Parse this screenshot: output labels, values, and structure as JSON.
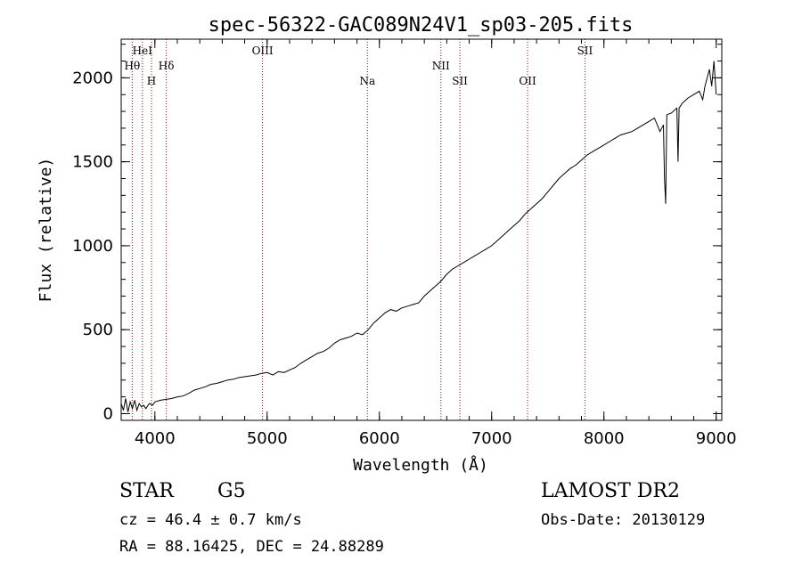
{
  "chart_data": {
    "type": "line",
    "title": "spec-56322-GAC089N24V1_sp03-205.fits",
    "xlabel": "Wavelength (Å)",
    "ylabel": "Flux (relative)",
    "xlim": [
      3700,
      9050
    ],
    "ylim": [
      -40,
      2230
    ],
    "x_ticks": [
      4000,
      5000,
      6000,
      7000,
      8000,
      9000
    ],
    "y_ticks": [
      0,
      500,
      1000,
      1500,
      2000
    ],
    "series": [
      {
        "values_mode": "wavelength-flux pairs",
        "points": [
          [
            3700,
            60
          ],
          [
            3720,
            20
          ],
          [
            3740,
            90
          ],
          [
            3760,
            10
          ],
          [
            3780,
            70
          ],
          [
            3800,
            30
          ],
          [
            3820,
            80
          ],
          [
            3840,
            20
          ],
          [
            3860,
            60
          ],
          [
            3880,
            40
          ],
          [
            3900,
            50
          ],
          [
            3920,
            30
          ],
          [
            3950,
            60
          ],
          [
            3980,
            50
          ],
          [
            4000,
            70
          ],
          [
            4050,
            80
          ],
          [
            4100,
            85
          ],
          [
            4150,
            90
          ],
          [
            4200,
            100
          ],
          [
            4250,
            105
          ],
          [
            4300,
            120
          ],
          [
            4350,
            140
          ],
          [
            4400,
            150
          ],
          [
            4450,
            160
          ],
          [
            4500,
            175
          ],
          [
            4550,
            180
          ],
          [
            4600,
            190
          ],
          [
            4650,
            200
          ],
          [
            4700,
            205
          ],
          [
            4750,
            215
          ],
          [
            4800,
            220
          ],
          [
            4850,
            225
          ],
          [
            4900,
            230
          ],
          [
            4950,
            240
          ],
          [
            5000,
            245
          ],
          [
            5050,
            230
          ],
          [
            5100,
            250
          ],
          [
            5150,
            245
          ],
          [
            5200,
            260
          ],
          [
            5250,
            275
          ],
          [
            5300,
            300
          ],
          [
            5350,
            320
          ],
          [
            5400,
            340
          ],
          [
            5450,
            360
          ],
          [
            5500,
            370
          ],
          [
            5550,
            390
          ],
          [
            5600,
            420
          ],
          [
            5650,
            440
          ],
          [
            5700,
            450
          ],
          [
            5750,
            460
          ],
          [
            5800,
            480
          ],
          [
            5850,
            470
          ],
          [
            5900,
            500
          ],
          [
            5950,
            540
          ],
          [
            6000,
            570
          ],
          [
            6050,
            600
          ],
          [
            6100,
            620
          ],
          [
            6150,
            610
          ],
          [
            6200,
            630
          ],
          [
            6250,
            640
          ],
          [
            6300,
            650
          ],
          [
            6350,
            660
          ],
          [
            6400,
            700
          ],
          [
            6450,
            730
          ],
          [
            6500,
            760
          ],
          [
            6550,
            790
          ],
          [
            6600,
            830
          ],
          [
            6650,
            860
          ],
          [
            6700,
            880
          ],
          [
            6750,
            900
          ],
          [
            6800,
            920
          ],
          [
            6850,
            940
          ],
          [
            6900,
            960
          ],
          [
            6950,
            980
          ],
          [
            7000,
            1000
          ],
          [
            7050,
            1030
          ],
          [
            7100,
            1060
          ],
          [
            7150,
            1090
          ],
          [
            7200,
            1120
          ],
          [
            7250,
            1150
          ],
          [
            7300,
            1190
          ],
          [
            7350,
            1220
          ],
          [
            7400,
            1250
          ],
          [
            7450,
            1280
          ],
          [
            7500,
            1320
          ],
          [
            7550,
            1360
          ],
          [
            7600,
            1400
          ],
          [
            7650,
            1430
          ],
          [
            7700,
            1460
          ],
          [
            7750,
            1480
          ],
          [
            7800,
            1510
          ],
          [
            7850,
            1540
          ],
          [
            7900,
            1560
          ],
          [
            7950,
            1580
          ],
          [
            8000,
            1600
          ],
          [
            8050,
            1620
          ],
          [
            8100,
            1640
          ],
          [
            8150,
            1660
          ],
          [
            8200,
            1670
          ],
          [
            8250,
            1680
          ],
          [
            8300,
            1700
          ],
          [
            8350,
            1720
          ],
          [
            8400,
            1740
          ],
          [
            8450,
            1760
          ],
          [
            8500,
            1680
          ],
          [
            8530,
            1720
          ],
          [
            8540,
            1400
          ],
          [
            8550,
            1250
          ],
          [
            8560,
            1780
          ],
          [
            8600,
            1790
          ],
          [
            8650,
            1820
          ],
          [
            8660,
            1500
          ],
          [
            8670,
            1820
          ],
          [
            8700,
            1850
          ],
          [
            8750,
            1880
          ],
          [
            8800,
            1900
          ],
          [
            8850,
            1920
          ],
          [
            8880,
            1870
          ],
          [
            8900,
            1950
          ],
          [
            8920,
            2000
          ],
          [
            8940,
            2050
          ],
          [
            8960,
            1950
          ],
          [
            8980,
            2100
          ],
          [
            9000,
            1900
          ]
        ]
      }
    ],
    "line_markers": [
      {
        "label": "Hθ",
        "x": 3798,
        "row": 1
      },
      {
        "label": "HeI",
        "x": 3889,
        "row": 0
      },
      {
        "label": "H",
        "x": 3970,
        "row": 2
      },
      {
        "label": "Hδ",
        "x": 4102,
        "row": 1
      },
      {
        "label": "OIII",
        "x": 4959,
        "row": 0
      },
      {
        "label": "Na",
        "x": 5893,
        "row": 2
      },
      {
        "label": "NII",
        "x": 6548,
        "row": 1
      },
      {
        "label": "SII",
        "x": 6717,
        "row": 2
      },
      {
        "label": "OII",
        "x": 7320,
        "row": 2
      },
      {
        "label": "SII",
        "x": 7831,
        "row": 0
      }
    ]
  },
  "info": {
    "class": "STAR",
    "subclass": "G5",
    "cz": "cz = 46.4 ± 0.7 km/s",
    "radec": "RA =  88.16425, DEC =  24.88289",
    "release": "LAMOST DR2",
    "obs_date": "Obs-Date: 20130129"
  }
}
